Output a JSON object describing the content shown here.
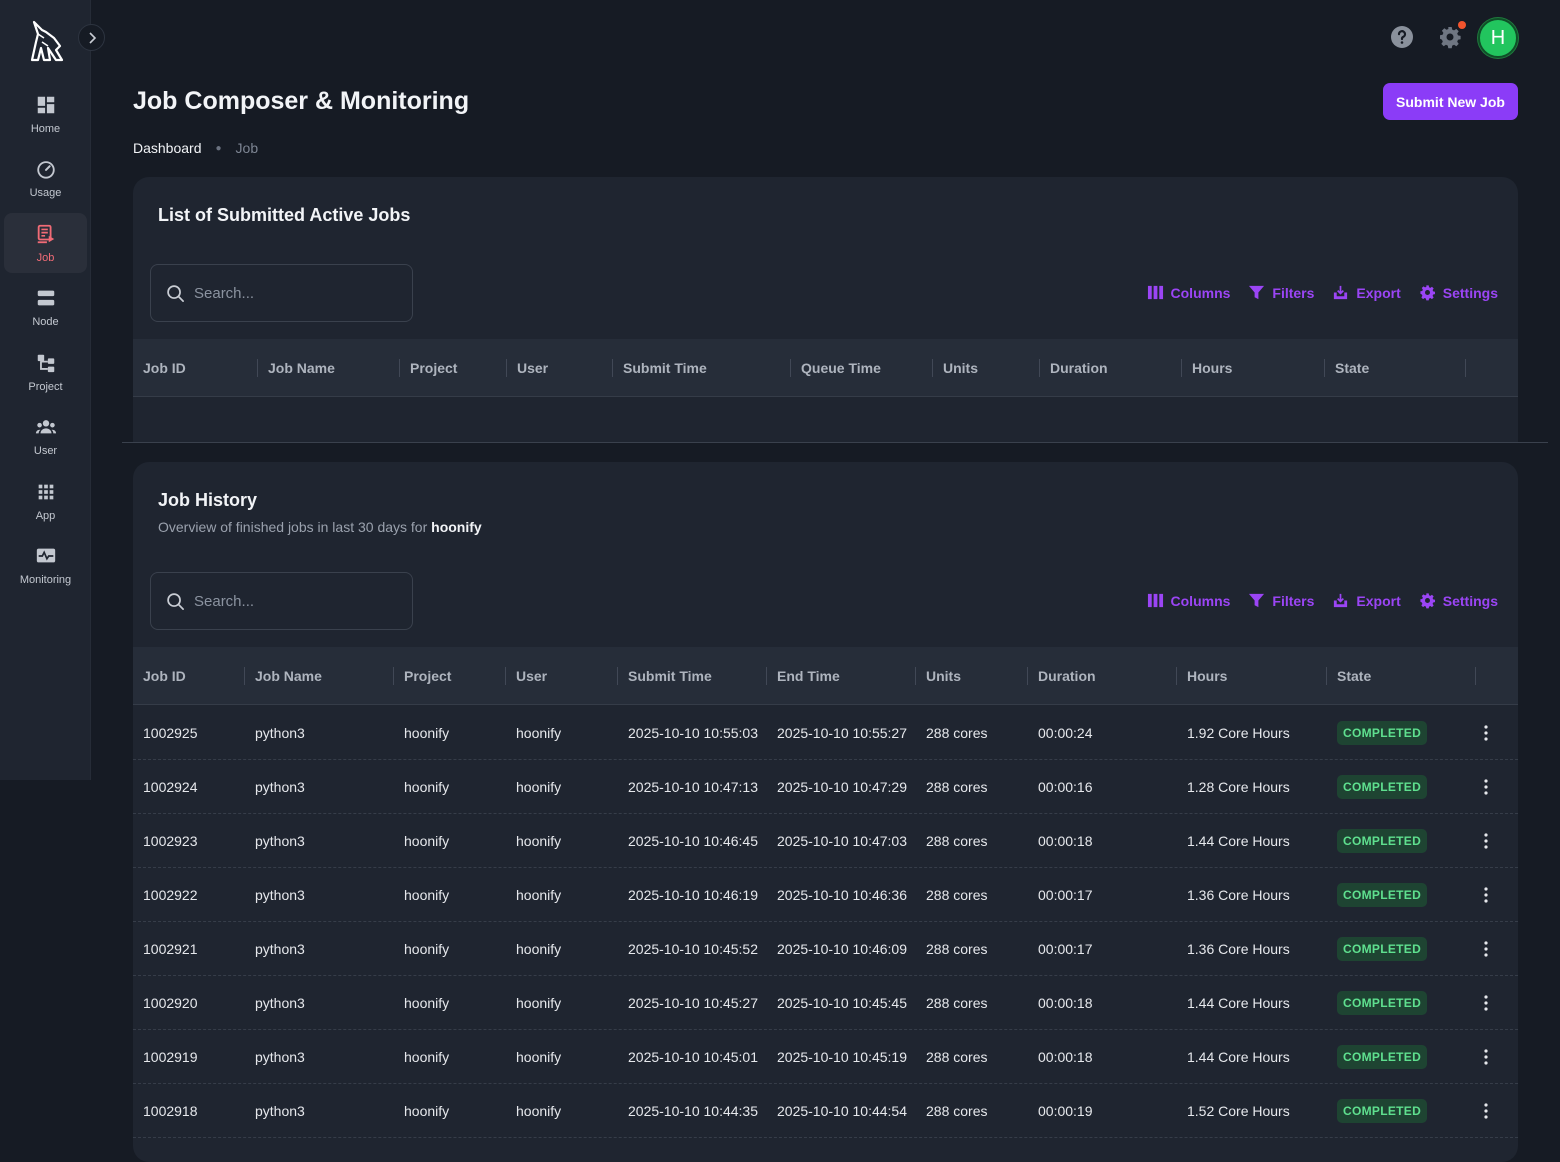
{
  "sidebar": {
    "items": [
      {
        "label": "Home",
        "icon": "dashboard-icon"
      },
      {
        "label": "Usage",
        "icon": "gauge-icon"
      },
      {
        "label": "Job",
        "icon": "job-icon",
        "active": true
      },
      {
        "label": "Node",
        "icon": "server-icon"
      },
      {
        "label": "Project",
        "icon": "hierarchy-icon"
      },
      {
        "label": "User",
        "icon": "users-icon"
      },
      {
        "label": "App",
        "icon": "apps-grid-icon"
      },
      {
        "label": "Monitoring",
        "icon": "monitoring-icon"
      }
    ]
  },
  "header": {
    "avatar_letter": "H",
    "avatar_color": "#22c55e",
    "notification_color": "#f2542d"
  },
  "page": {
    "title": "Job Composer & Monitoring",
    "submit_button": "Submit New Job",
    "breadcrumb": {
      "root": "Dashboard",
      "leaf": "Job"
    }
  },
  "colors": {
    "accent": "#8b3cf7",
    "active_nav": "#f16b76",
    "completed": "#5fe08f"
  },
  "toolbar": {
    "columns": "Columns",
    "filters": "Filters",
    "export": "Export",
    "settings": "Settings"
  },
  "active_jobs": {
    "title": "List of Submitted Active Jobs",
    "search_placeholder": "Search...",
    "columns": [
      "Job ID",
      "Job Name",
      "Project",
      "User",
      "Submit Time",
      "Queue Time",
      "Units",
      "Duration",
      "Hours",
      "State"
    ],
    "rows": []
  },
  "history": {
    "title": "Job History",
    "subtitle_prefix": "Overview of finished jobs in last 30 days for ",
    "subtitle_user": "hoonify",
    "search_placeholder": "Search...",
    "columns": [
      "Job ID",
      "Job Name",
      "Project",
      "User",
      "Submit Time",
      "End Time",
      "Units",
      "Duration",
      "Hours",
      "State"
    ],
    "rows": [
      {
        "id": "1002925",
        "name": "python3",
        "project": "hoonify",
        "user": "hoonify",
        "submit": "2025-10-10 10:55:03",
        "end": "2025-10-10 10:55:27",
        "units": "288 cores",
        "duration": "00:00:24",
        "hours": "1.92 Core Hours",
        "state": "COMPLETED"
      },
      {
        "id": "1002924",
        "name": "python3",
        "project": "hoonify",
        "user": "hoonify",
        "submit": "2025-10-10 10:47:13",
        "end": "2025-10-10 10:47:29",
        "units": "288 cores",
        "duration": "00:00:16",
        "hours": "1.28 Core Hours",
        "state": "COMPLETED"
      },
      {
        "id": "1002923",
        "name": "python3",
        "project": "hoonify",
        "user": "hoonify",
        "submit": "2025-10-10 10:46:45",
        "end": "2025-10-10 10:47:03",
        "units": "288 cores",
        "duration": "00:00:18",
        "hours": "1.44 Core Hours",
        "state": "COMPLETED"
      },
      {
        "id": "1002922",
        "name": "python3",
        "project": "hoonify",
        "user": "hoonify",
        "submit": "2025-10-10 10:46:19",
        "end": "2025-10-10 10:46:36",
        "units": "288 cores",
        "duration": "00:00:17",
        "hours": "1.36 Core Hours",
        "state": "COMPLETED"
      },
      {
        "id": "1002921",
        "name": "python3",
        "project": "hoonify",
        "user": "hoonify",
        "submit": "2025-10-10 10:45:52",
        "end": "2025-10-10 10:46:09",
        "units": "288 cores",
        "duration": "00:00:17",
        "hours": "1.36 Core Hours",
        "state": "COMPLETED"
      },
      {
        "id": "1002920",
        "name": "python3",
        "project": "hoonify",
        "user": "hoonify",
        "submit": "2025-10-10 10:45:27",
        "end": "2025-10-10 10:45:45",
        "units": "288 cores",
        "duration": "00:00:18",
        "hours": "1.44 Core Hours",
        "state": "COMPLETED"
      },
      {
        "id": "1002919",
        "name": "python3",
        "project": "hoonify",
        "user": "hoonify",
        "submit": "2025-10-10 10:45:01",
        "end": "2025-10-10 10:45:19",
        "units": "288 cores",
        "duration": "00:00:18",
        "hours": "1.44 Core Hours",
        "state": "COMPLETED"
      },
      {
        "id": "1002918",
        "name": "python3",
        "project": "hoonify",
        "user": "hoonify",
        "submit": "2025-10-10 10:44:35",
        "end": "2025-10-10 10:44:54",
        "units": "288 cores",
        "duration": "00:00:19",
        "hours": "1.52 Core Hours",
        "state": "COMPLETED"
      }
    ]
  }
}
